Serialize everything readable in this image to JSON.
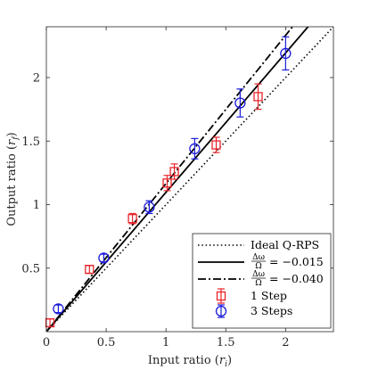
{
  "chart_data": {
    "type": "scatter",
    "xlabel": "Input ratio",
    "xlabel_symbol": "r",
    "xlabel_sub": "i",
    "ylabel": "Output ratio",
    "ylabel_symbol": "r",
    "ylabel_sub": "f",
    "xlim": [
      0,
      2.4
    ],
    "ylim": [
      0,
      2.4
    ],
    "xticks": [
      0,
      0.5,
      1,
      1.5,
      2
    ],
    "yticks": [
      0.5,
      1,
      1.5,
      2
    ],
    "xtick_labels": [
      "0",
      "0.5",
      "1",
      "1.5",
      "2"
    ],
    "ytick_labels": [
      "0.5",
      "1",
      "1.5",
      "2"
    ],
    "legend_position": "bottom-right",
    "lines": [
      {
        "name": "Ideal Q-RPS",
        "style": "dotted",
        "color": "#000000",
        "slope": 1.0
      },
      {
        "name": "Δω/Ω = −0.015",
        "frac_num": "Δω",
        "frac_den": "Ω",
        "value_text": "= −0.015",
        "style": "solid",
        "color": "#000000",
        "slope": 1.097
      },
      {
        "name": "Δω/Ω = −0.040",
        "frac_num": "Δω",
        "frac_den": "Ω",
        "value_text": "= −0.040",
        "style": "dashdot",
        "color": "#000000",
        "slope": 1.166
      }
    ],
    "series": [
      {
        "name": "1 Step",
        "marker": "square",
        "color": "#e8252b",
        "points": [
          {
            "x": 0.03,
            "y": 0.07,
            "err": 0.03
          },
          {
            "x": 0.36,
            "y": 0.49,
            "err": 0.03
          },
          {
            "x": 0.72,
            "y": 0.89,
            "err": 0.04
          },
          {
            "x": 1.01,
            "y": 1.17,
            "err": 0.06
          },
          {
            "x": 1.07,
            "y": 1.26,
            "err": 0.06
          },
          {
            "x": 1.42,
            "y": 1.47,
            "err": 0.06
          },
          {
            "x": 1.77,
            "y": 1.85,
            "err": 0.1
          }
        ]
      },
      {
        "name": "3 Steps",
        "marker": "circle",
        "color": "#1a1adc",
        "points": [
          {
            "x": 0.1,
            "y": 0.18,
            "err": 0.03
          },
          {
            "x": 0.48,
            "y": 0.58,
            "err": 0.03
          },
          {
            "x": 0.86,
            "y": 0.98,
            "err": 0.05
          },
          {
            "x": 1.24,
            "y": 1.44,
            "err": 0.08
          },
          {
            "x": 1.62,
            "y": 1.8,
            "err": 0.11
          },
          {
            "x": 2.0,
            "y": 2.19,
            "err": 0.13
          }
        ]
      }
    ]
  }
}
